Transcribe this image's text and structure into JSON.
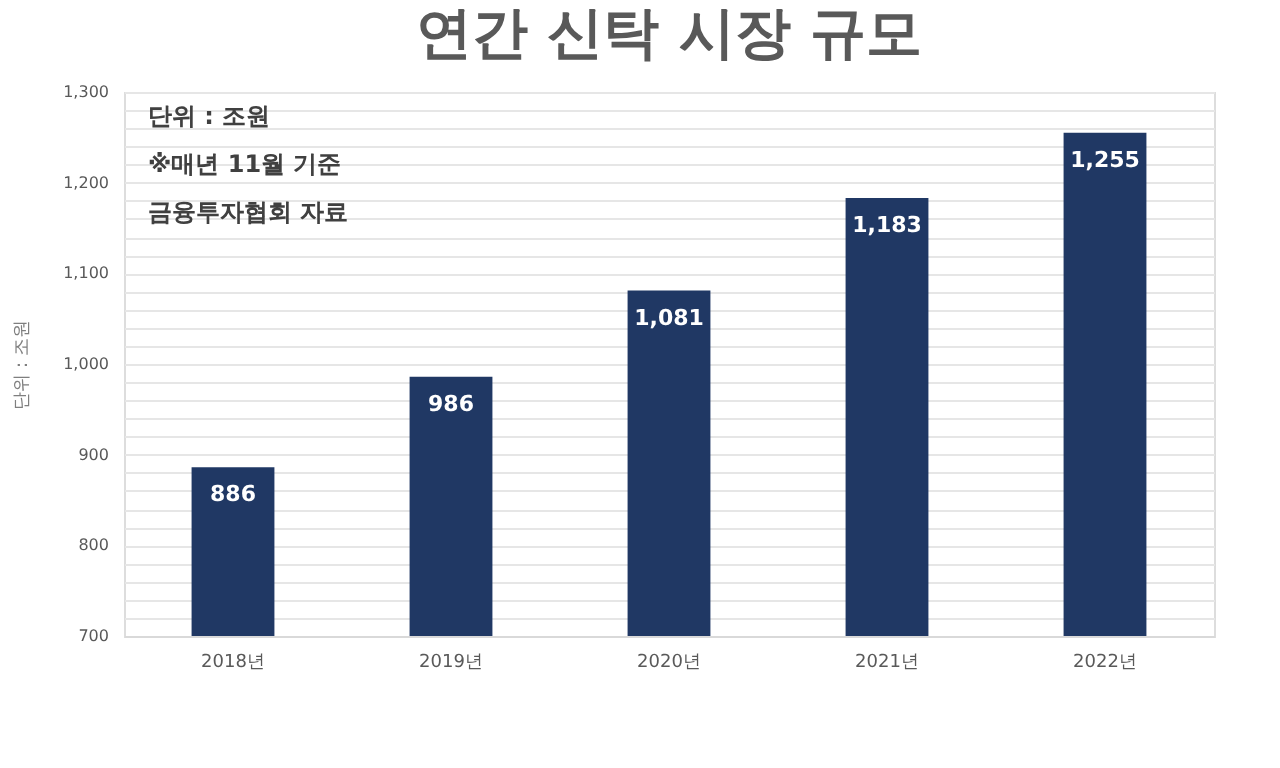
{
  "chart_data": {
    "type": "bar",
    "title": "연간 신탁 시장 규모",
    "ylabel": "단위 : 조원",
    "categories": [
      "2018년",
      "2019년",
      "2020년",
      "2021년",
      "2022년"
    ],
    "values": [
      886,
      986,
      1081,
      1183,
      1255
    ],
    "color": "#203864",
    "ylim": [
      700,
      1300
    ],
    "yticks": [
      700,
      {
        "value": 720,
        "label": null
      },
      {
        "value": 740,
        "label": null
      },
      {
        "value": 760,
        "label": null
      },
      {
        "value": 780,
        "label": null
      },
      800,
      {
        "value": 820,
        "label": null
      },
      {
        "value": 840,
        "label": null
      },
      {
        "value": 860,
        "label": null
      },
      {
        "value": 880,
        "label": null
      },
      900,
      {
        "value": 920,
        "label": null
      },
      {
        "value": 940,
        "label": null
      },
      {
        "value": 960,
        "label": null
      },
      {
        "value": 980,
        "label": null
      },
      {
        "value": 1000,
        "label": "1,000"
      },
      {
        "value": 1020,
        "label": null
      },
      {
        "value": 1040,
        "label": null
      },
      {
        "value": 1060,
        "label": null
      },
      {
        "value": 1080,
        "label": null
      },
      {
        "value": 1100,
        "label": "1,100"
      },
      {
        "value": 1120,
        "label": null
      },
      {
        "value": 1140,
        "label": null
      },
      {
        "value": 1160,
        "label": null
      },
      {
        "value": 1180,
        "label": null
      },
      {
        "value": 1200,
        "label": "1,200"
      },
      {
        "value": 1220,
        "label": null
      },
      {
        "value": 1240,
        "label": null
      },
      {
        "value": 1260,
        "label": null
      },
      {
        "value": 1280,
        "label": null
      },
      {
        "value": 1300,
        "label": "1,300"
      }
    ],
    "grid": "y",
    "value_labels": [
      "886",
      "986",
      "1,081",
      "1,183",
      "1,255"
    ],
    "annotations": [
      "단위 : 조원",
      "※매년 11월 기준",
      "금융투자협회 자료"
    ]
  }
}
